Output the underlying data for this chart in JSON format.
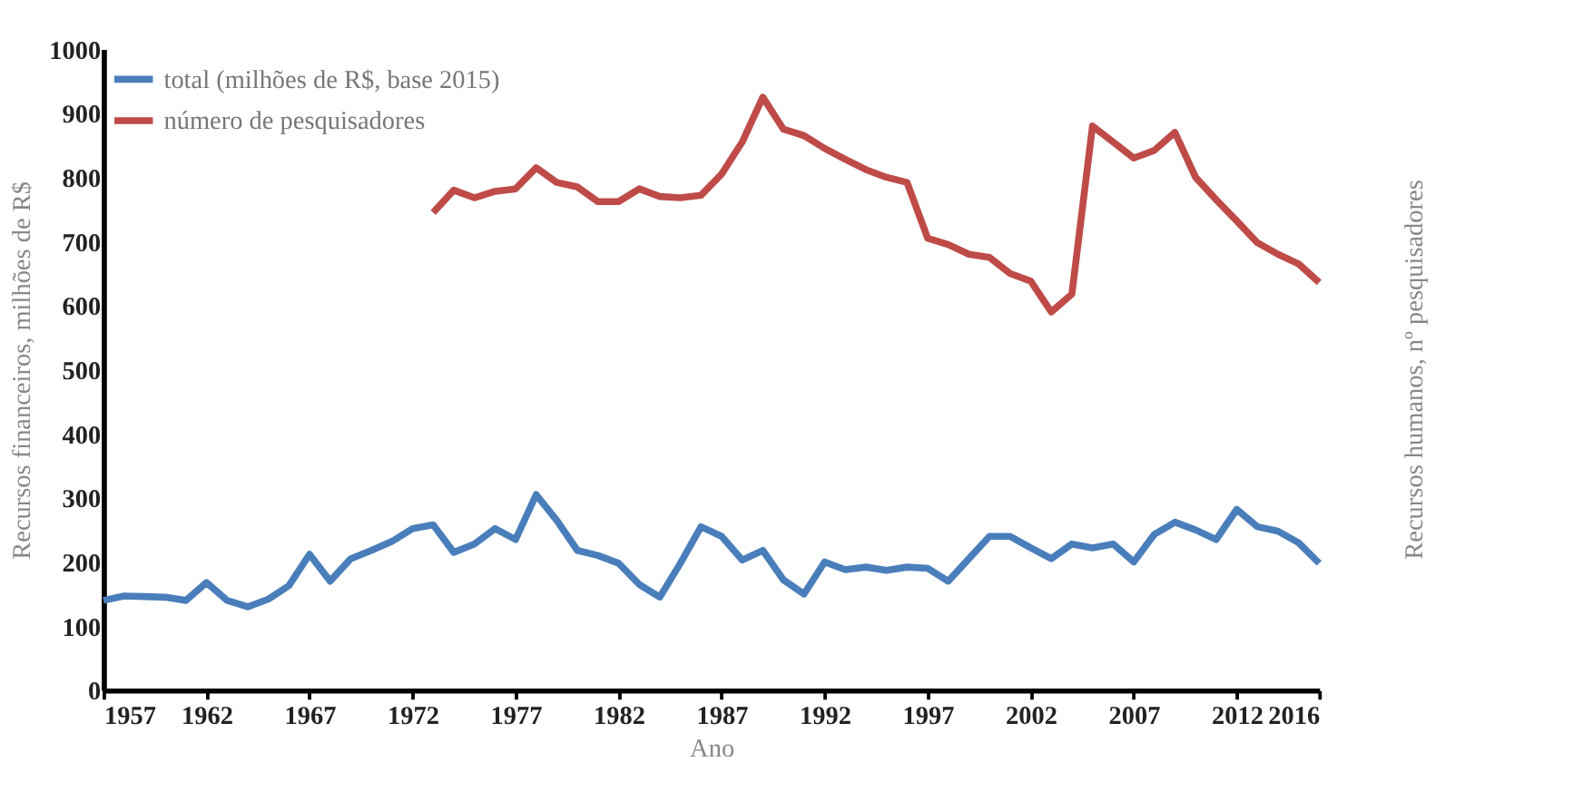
{
  "chart_data": {
    "type": "line",
    "xlabel": "Ano",
    "ylabel": "Recursos financeiros, milhões de R$",
    "y2label": "Recursos humanos, nº pesquisadores",
    "x": [
      1957,
      1958,
      1959,
      1960,
      1961,
      1962,
      1963,
      1964,
      1965,
      1966,
      1967,
      1968,
      1969,
      1970,
      1971,
      1972,
      1973,
      1974,
      1975,
      1976,
      1977,
      1978,
      1979,
      1980,
      1981,
      1982,
      1983,
      1984,
      1985,
      1986,
      1987,
      1988,
      1989,
      1990,
      1991,
      1992,
      1993,
      1994,
      1995,
      1996,
      1997,
      1998,
      1999,
      2000,
      2001,
      2002,
      2003,
      2004,
      2005,
      2006,
      2007,
      2008,
      2009,
      2010,
      2011,
      2012,
      2013,
      2014,
      2015,
      2016
    ],
    "series": [
      {
        "name": "total (milhões de R$, base 2015)",
        "color": "#4a7ebb",
        "values": [
          140,
          147,
          146,
          145,
          140,
          168,
          140,
          130,
          142,
          163,
          212,
          170,
          205,
          218,
          232,
          252,
          258,
          215,
          228,
          252,
          235,
          305,
          265,
          218,
          210,
          198,
          165,
          145,
          198,
          255,
          240,
          203,
          218,
          172,
          150,
          200,
          188,
          192,
          187,
          192,
          190,
          170,
          205,
          240,
          240,
          222,
          205,
          228,
          222,
          228,
          200,
          243,
          262,
          250,
          235,
          282,
          255,
          248,
          230,
          198
        ]
      },
      {
        "name": "número de pesquisadores",
        "color": "#be4b48",
        "x": [
          1973,
          1974,
          1975,
          1976,
          1977,
          1978,
          1979,
          1980,
          1981,
          1982,
          1983,
          1984,
          1985,
          1986,
          1987,
          1988,
          1989,
          1990,
          1991,
          1992,
          1993,
          1994,
          1995,
          1996,
          1997,
          1998,
          1999,
          2000,
          2001,
          2002,
          2003,
          2004,
          2005,
          2006,
          2007,
          2008,
          2009,
          2010,
          2011,
          2012,
          2013,
          2014,
          2015,
          2016
        ],
        "values": [
          745,
          780,
          768,
          778,
          782,
          815,
          792,
          785,
          762,
          762,
          782,
          770,
          768,
          772,
          805,
          855,
          925,
          875,
          865,
          845,
          828,
          812,
          800,
          792,
          705,
          695,
          680,
          675,
          650,
          638,
          590,
          618,
          880,
          855,
          830,
          842,
          870,
          800,
          765,
          732,
          698,
          680,
          665,
          636
        ]
      }
    ],
    "xlim": [
      1957,
      2016
    ],
    "xticks": [
      1957,
      1962,
      1967,
      1972,
      1977,
      1982,
      1987,
      1992,
      1997,
      2002,
      2007,
      2012,
      2016
    ],
    "ylim": [
      0,
      1000
    ],
    "yticks": [
      0,
      100,
      200,
      300,
      400,
      500,
      600,
      700,
      800,
      900,
      1000
    ],
    "grid": false,
    "legend": "top left",
    "marker": "none",
    "line_style": "solid"
  }
}
